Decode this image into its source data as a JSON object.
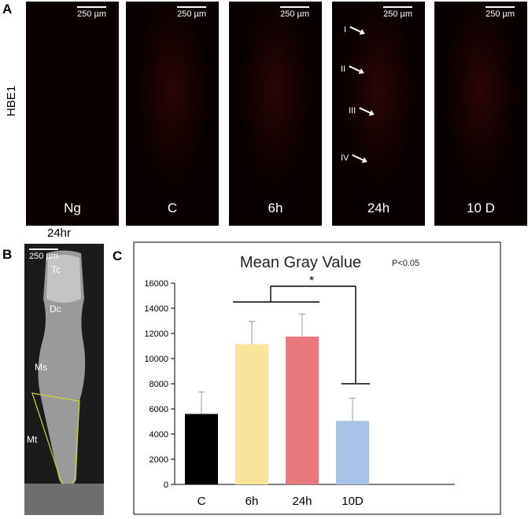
{
  "panel_a": {
    "letter": "A",
    "row_label": "HBE1",
    "images": [
      {
        "label": "Ng",
        "scale": "250 µm"
      },
      {
        "label": "C",
        "scale": "250 µm"
      },
      {
        "label": "6h",
        "scale": "250 µm"
      },
      {
        "label": "24h",
        "scale": "250 µm"
      },
      {
        "label": "10 D",
        "scale": "250 µm"
      }
    ],
    "arrows": [
      "I",
      "II",
      "III",
      "IV"
    ]
  },
  "panel_b": {
    "letter": "B",
    "title": "24hr",
    "scale": "250 µm",
    "regions": [
      "Tc",
      "Dc",
      "Ms",
      "Mt"
    ]
  },
  "panel_c": {
    "letter": "C",
    "significance": "P<0.05",
    "star": "*"
  },
  "chart_data": {
    "type": "bar",
    "title": "Mean Gray Value",
    "categories": [
      "C",
      "6h",
      "24h",
      "10D"
    ],
    "values": [
      5600,
      11150,
      11750,
      5050
    ],
    "errors": [
      1750,
      1800,
      1800,
      1800
    ],
    "colors": [
      "#000000",
      "#f7e59a",
      "#e9787f",
      "#a9c3e6"
    ],
    "ylim": [
      0,
      16000
    ],
    "yticks": [
      0,
      2000,
      4000,
      6000,
      8000,
      10000,
      12000,
      14000,
      16000
    ],
    "ytick_labels": [
      "0",
      "2000",
      "4000",
      "6000",
      "8000",
      "10000",
      "12000",
      "14000",
      "16000"
    ],
    "xlabel": "",
    "ylabel": ""
  }
}
